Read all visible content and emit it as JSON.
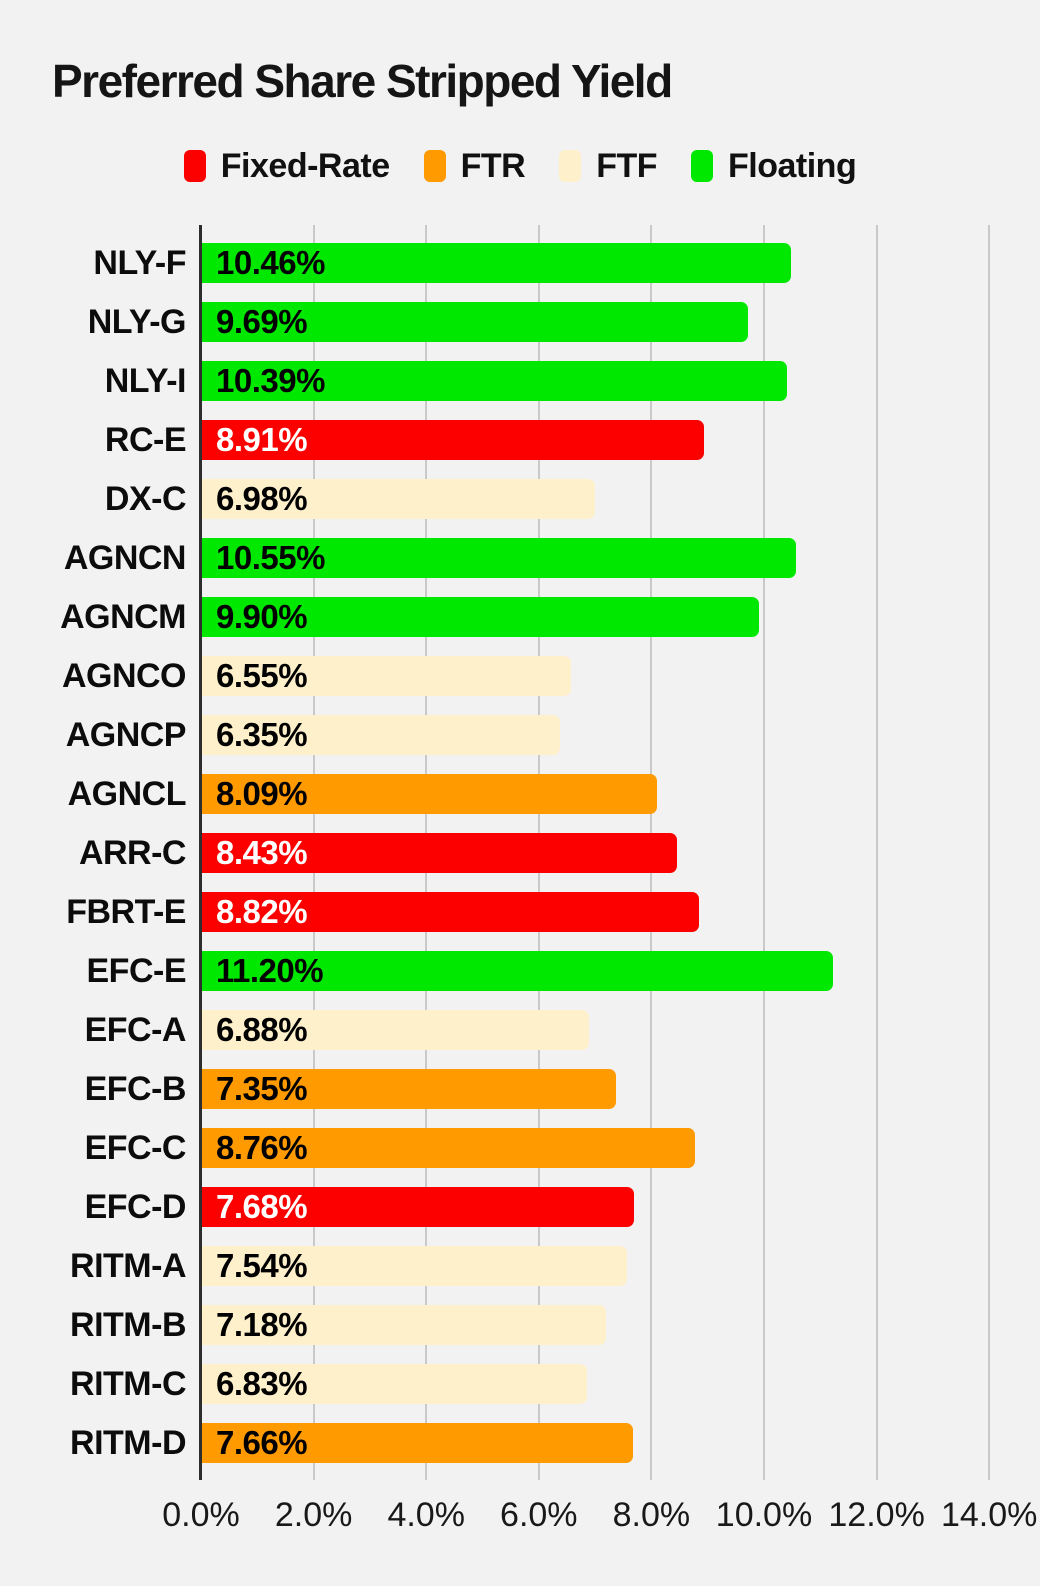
{
  "chart_data": {
    "type": "bar",
    "orientation": "horizontal",
    "title": "Preferred Share Stripped Yield",
    "background_color": "#F2F2F2",
    "legend_position": "top-center",
    "grid": true,
    "legend": [
      {
        "label": "Fixed-Rate",
        "key": "fixed"
      },
      {
        "label": "FTR",
        "key": "ftr"
      },
      {
        "label": "FTF",
        "key": "ftf"
      },
      {
        "label": "Floating",
        "key": "floating"
      }
    ],
    "colors": {
      "fixed": "#FC0000",
      "ftr": "#FF9A00",
      "ftf": "#FDF0CA",
      "floating": "#00E800"
    },
    "value_label_text_colors": {
      "fixed": "#FFFFFF",
      "ftr": "#000000",
      "ftf": "#000000",
      "floating": "#000000"
    },
    "categories": [
      "NLY-F",
      "NLY-G",
      "NLY-I",
      "RC-E",
      "DX-C",
      "AGNCN",
      "AGNCM",
      "AGNCO",
      "AGNCP",
      "AGNCL",
      "ARR-C",
      "FBRT-E",
      "EFC-E",
      "EFC-A",
      "EFC-B",
      "EFC-C",
      "EFC-D",
      "RITM-A",
      "RITM-B",
      "RITM-C",
      "RITM-D"
    ],
    "values": [
      10.46,
      9.69,
      10.39,
      8.91,
      6.98,
      10.55,
      9.9,
      6.55,
      6.35,
      8.09,
      8.43,
      8.82,
      11.2,
      6.88,
      7.35,
      8.76,
      7.68,
      7.54,
      7.18,
      6.83,
      7.66
    ],
    "value_labels": [
      "10.46%",
      "9.69%",
      "10.39%",
      "8.91%",
      "6.98%",
      "10.55%",
      "9.90%",
      "6.55%",
      "6.35%",
      "8.09%",
      "8.43%",
      "8.82%",
      "11.20%",
      "6.88%",
      "7.35%",
      "8.76%",
      "7.68%",
      "7.54%",
      "7.18%",
      "6.83%",
      "7.66%"
    ],
    "classes": [
      "floating",
      "floating",
      "floating",
      "fixed",
      "ftf",
      "floating",
      "floating",
      "ftf",
      "ftf",
      "ftr",
      "fixed",
      "fixed",
      "floating",
      "ftf",
      "ftr",
      "ftr",
      "fixed",
      "ftf",
      "ftf",
      "ftf",
      "ftr"
    ],
    "x_axis": {
      "range": [
        0,
        14
      ],
      "tick_values": [
        0,
        2,
        4,
        6,
        8,
        10,
        12,
        14
      ],
      "tick_labels": [
        "0.0%",
        "2.0%",
        "4.0%",
        "6.0%",
        "8.0%",
        "10.0%",
        "12.0%",
        "14.0%"
      ]
    }
  }
}
